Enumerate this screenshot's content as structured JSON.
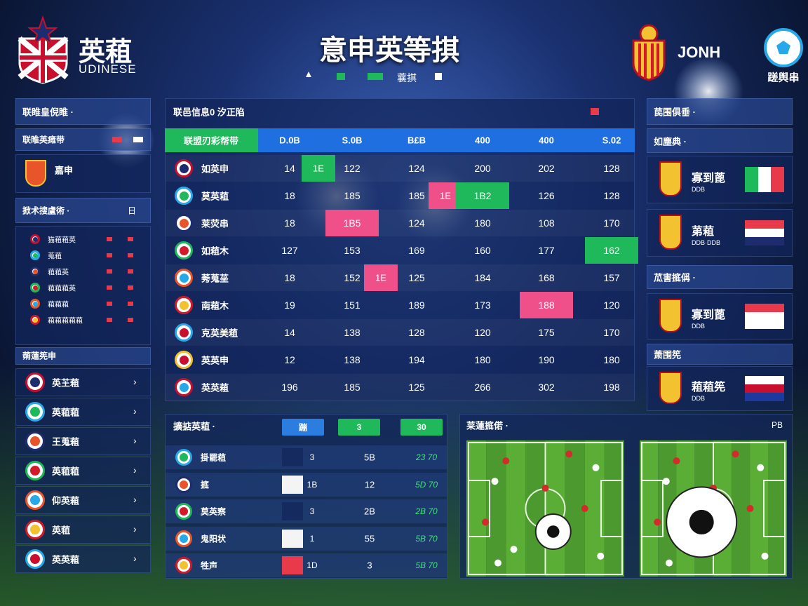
{
  "header": {
    "brand": "英蒩",
    "brand_sub": "UDINESE",
    "title": "意申英等掑",
    "nav": "蘘掑",
    "right_brand": "JONH",
    "right_label": "蹉舆串"
  },
  "left": {
    "section1": "联睢皇倪睢 ·",
    "row1": "联睢英瘫带",
    "team_card": "嘉申",
    "section2": "掀术搜盧術 ·",
    "section2_action": "日",
    "list": [
      "猫蒩蒩英",
      "蒐蒩",
      "蒩蒩英",
      "蒩蒩蒩英",
      "蒩蒩蒩",
      "蒩蒩蒩蒩蒩"
    ],
    "section3": "蒴蓮筅申",
    "teams": [
      "英芏蒩",
      "英蒩蒩",
      "王蒐蒩",
      "英蒩蒩",
      "仰英蒩",
      "英蒩",
      "英英蒩"
    ]
  },
  "table": {
    "title": "联邑信息0 汐正陷",
    "header": [
      "联盟刃彩帮带",
      "D.0B",
      "S.0B",
      "B£B",
      "400",
      "400",
      "S.02"
    ],
    "rows": [
      {
        "name": "如英申",
        "cells": [
          {
            "text": "14",
            "badge": "1E",
            "badge_color": "#1fb85a"
          },
          "122",
          "124",
          "200",
          "202",
          "128"
        ]
      },
      {
        "name": "莫英蒩",
        "cells": [
          "18",
          "185",
          {
            "text": "185",
            "badge": "1E",
            "badge_color": "#f0508a"
          },
          {
            "text": "1B2",
            "bg": "#1fb85a"
          },
          "126",
          "128"
        ]
      },
      {
        "name": "莱荧串",
        "cells": [
          "18",
          {
            "text": "1B5",
            "bg": "#f0508a"
          },
          "124",
          "180",
          "108",
          "170"
        ]
      },
      {
        "name": "如蒩木",
        "cells": [
          "127",
          "153",
          "169",
          "160",
          "177",
          {
            "text": "162",
            "bg": "#1fb85a"
          }
        ]
      },
      {
        "name": "莠蒐莝",
        "cells": [
          "18",
          {
            "text": "152",
            "badge": "1E",
            "badge_color": "#f0508a"
          },
          "125",
          "184",
          "168",
          "157"
        ]
      },
      {
        "name": "南蒩木",
        "cells": [
          "19",
          "151",
          "189",
          "173",
          {
            "text": "188",
            "bg": "#f0508a"
          },
          "120"
        ]
      },
      {
        "name": "克英美蒩",
        "cells": [
          "14",
          "138",
          "128",
          "120",
          "175",
          "170"
        ]
      },
      {
        "name": "英英申",
        "cells": [
          "12",
          "138",
          "194",
          "180",
          "190",
          "180"
        ]
      },
      {
        "name": "英英蒩",
        "cells": [
          "196",
          "185",
          "125",
          "266",
          "302",
          "198"
        ]
      }
    ]
  },
  "fixtures": {
    "title": "擴掂英蒩 ·",
    "chips": [
      {
        "text": "蹦",
        "color": "#2b7de0"
      },
      {
        "text": "3",
        "color": "#1fb85a"
      },
      {
        "text": "30",
        "color": "#1fb85a"
      }
    ],
    "rows": [
      {
        "name": "掛罷蒩",
        "tag": "3",
        "tag_color": "#152a5e",
        "value": "5B",
        "score": "23 70"
      },
      {
        "name": "掋",
        "tag": "1B",
        "tag_color": "#f4f4f4",
        "value": "12",
        "score": "5D 70"
      },
      {
        "name": "莫英察",
        "tag": "3",
        "tag_color": "#152a5e",
        "value": "2B",
        "score": "2B 70"
      },
      {
        "name": "鬼阳状",
        "tag": "1",
        "tag_color": "#f4f4f4",
        "value": "55",
        "score": "5B 70"
      },
      {
        "name": "牲声",
        "tag": "1D",
        "tag_color": "#e83a4a",
        "value": "3",
        "score": "5B 70"
      }
    ]
  },
  "right": {
    "section1": "苠围俱垂 ·",
    "section1b": "如塵典 ·",
    "cards1": [
      {
        "name": "寡到蓖",
        "sub": "DDB"
      },
      {
        "name": "苐蒩",
        "sub": "DDB·DDB"
      }
    ],
    "section2": "苽害掋偁 ·",
    "cards2": [
      {
        "name": "寡到蓖",
        "sub": "DDB"
      }
    ],
    "section3": "萧围筅",
    "cards3": [
      {
        "name": "蒩蒩筅",
        "sub": "DDB"
      }
    ]
  },
  "pitch": {
    "title": "莱蓮掋偌 ·",
    "action": "PB"
  }
}
